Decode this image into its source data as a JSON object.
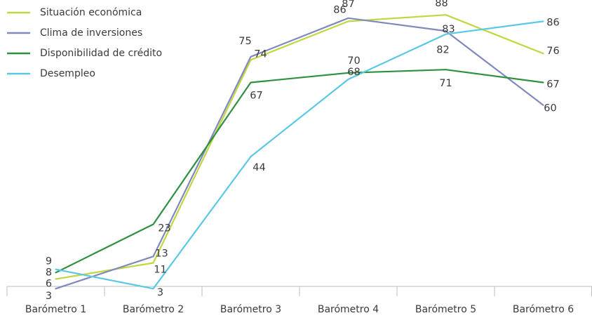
{
  "chart_data": {
    "type": "line",
    "title": "",
    "xlabel": "",
    "ylabel": "",
    "categories": [
      "Barómetro 1",
      "Barómetro 2",
      "Barómetro 3",
      "Barómetro 4",
      "Barómetro 5",
      "Barómetro 6"
    ],
    "ylim": [
      0,
      90
    ],
    "grid": false,
    "legend_position": "top-left",
    "series": [
      {
        "name": "Situación económica",
        "color": "#c2d640",
        "values": [
          6,
          11,
          74,
          86,
          88,
          76
        ]
      },
      {
        "name": "Clima de inversiones",
        "color": "#8089bd",
        "values": [
          3,
          13,
          75,
          87,
          83,
          60
        ]
      },
      {
        "name": "Disponibilidad de crédito",
        "color": "#2e9040",
        "values": [
          8,
          23,
          67,
          70,
          71,
          67
        ]
      },
      {
        "name": "Desempleo",
        "color": "#5ac8e4",
        "values": [
          9,
          3,
          44,
          68,
          82,
          86
        ]
      }
    ]
  }
}
